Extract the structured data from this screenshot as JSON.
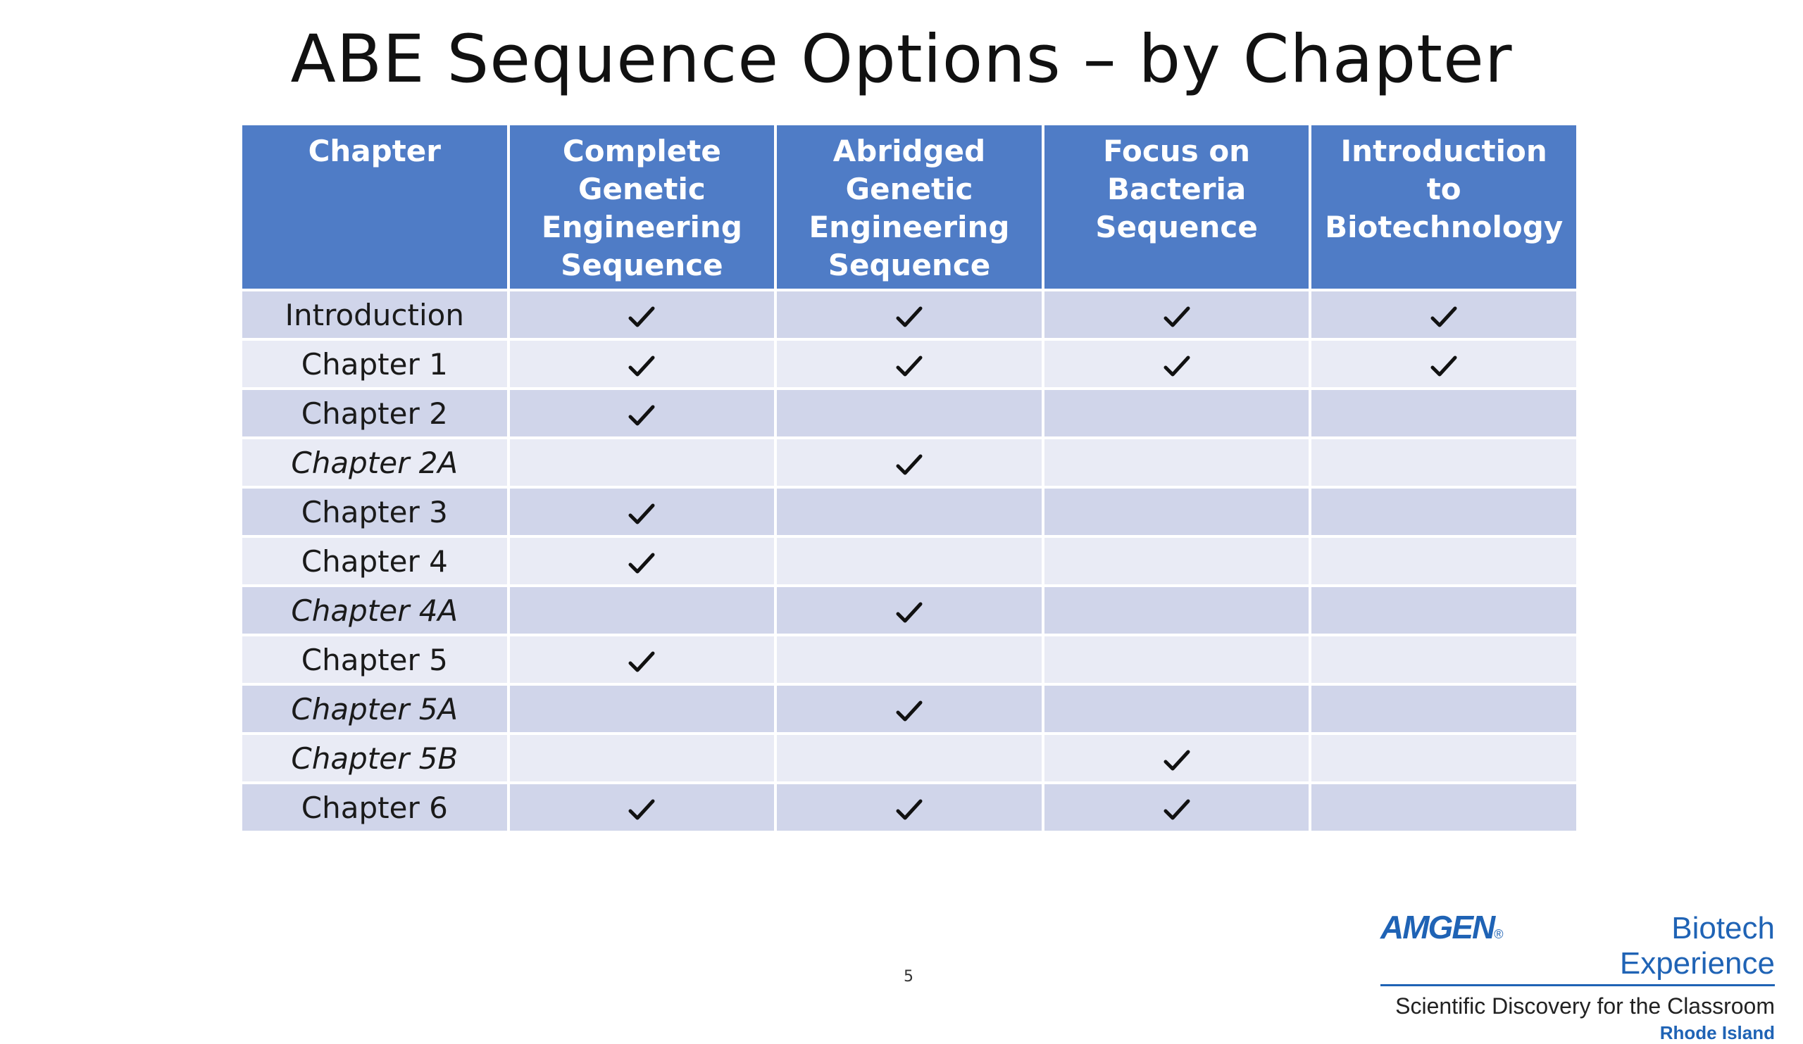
{
  "slide": {
    "title": "ABE Sequence Options – by Chapter",
    "page_number": "5"
  },
  "table": {
    "headers": [
      "Chapter",
      "Complete Genetic Engineering Sequence",
      "Abridged Genetic Engineering Sequence",
      "Focus on Bacteria Sequence",
      "Introduction to Biotechnology"
    ],
    "rows": [
      {
        "chapter": "Introduction",
        "italic": false,
        "checks": [
          true,
          true,
          true,
          true
        ]
      },
      {
        "chapter": "Chapter 1",
        "italic": false,
        "checks": [
          true,
          true,
          true,
          true
        ]
      },
      {
        "chapter": "Chapter 2",
        "italic": false,
        "checks": [
          true,
          false,
          false,
          false
        ]
      },
      {
        "chapter": "Chapter 2A",
        "italic": true,
        "checks": [
          false,
          true,
          false,
          false
        ]
      },
      {
        "chapter": "Chapter 3",
        "italic": false,
        "checks": [
          true,
          false,
          false,
          false
        ]
      },
      {
        "chapter": "Chapter 4",
        "italic": false,
        "checks": [
          true,
          false,
          false,
          false
        ]
      },
      {
        "chapter": "Chapter 4A",
        "italic": true,
        "checks": [
          false,
          true,
          false,
          false
        ]
      },
      {
        "chapter": "Chapter 5",
        "italic": false,
        "checks": [
          true,
          false,
          false,
          false
        ]
      },
      {
        "chapter": "Chapter 5A",
        "italic": true,
        "checks": [
          false,
          true,
          false,
          false
        ]
      },
      {
        "chapter": "Chapter 5B",
        "italic": true,
        "checks": [
          false,
          false,
          true,
          false
        ]
      },
      {
        "chapter": "Chapter 6",
        "italic": false,
        "checks": [
          true,
          true,
          true,
          false
        ]
      }
    ],
    "colors": {
      "header_bg": "#4f7cc6",
      "row_odd_bg": "#d0d5ea",
      "row_even_bg": "#e9ebf5"
    },
    "check_icon": "check-icon"
  },
  "logo": {
    "brand": "AMGEN",
    "registered": "®",
    "product": "Biotech Experience",
    "tagline": "Scientific Discovery for the Classroom",
    "region": "Rhode Island",
    "color": "#1f63b5"
  }
}
